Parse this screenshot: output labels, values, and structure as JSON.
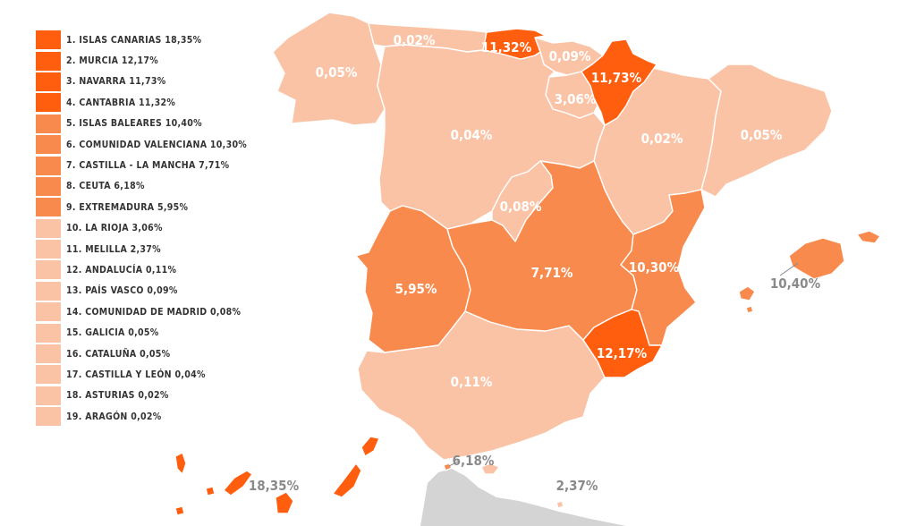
{
  "colors": {
    "tier1": "#ff5e0e",
    "tier2": "#f98a4d",
    "tier3": "#fbc3a6",
    "label_light": "#ffffff",
    "label_dark": "#8a8a8a",
    "foreign_land": "#d4d4d4"
  },
  "legend": [
    {
      "label": "1. ISLAS CANARIAS 18,35%",
      "tier": "tier1"
    },
    {
      "label": "2. MURCIA 12,17%",
      "tier": "tier1"
    },
    {
      "label": "3. NAVARRA 11,73%",
      "tier": "tier1"
    },
    {
      "label": "4. CANTABRIA 11,32%",
      "tier": "tier1"
    },
    {
      "label": "5. ISLAS BALEARES 10,40%",
      "tier": "tier2"
    },
    {
      "label": "6. COMUNIDAD VALENCIANA 10,30%",
      "tier": "tier2"
    },
    {
      "label": "7. CASTILLA - LA MANCHA 7,71%",
      "tier": "tier2"
    },
    {
      "label": "8. CEUTA 6,18%",
      "tier": "tier2"
    },
    {
      "label": "9. EXTREMADURA 5,95%",
      "tier": "tier2"
    },
    {
      "label": "10. LA RIOJA 3,06%",
      "tier": "tier3"
    },
    {
      "label": "11. MELILLA 2,37%",
      "tier": "tier3"
    },
    {
      "label": "12. ANDALUCÍA 0,11%",
      "tier": "tier3"
    },
    {
      "label": "13. PAÍS VASCO 0,09%",
      "tier": "tier3"
    },
    {
      "label": "14. COMUNIDAD DE MADRID 0,08%",
      "tier": "tier3"
    },
    {
      "label": "15. GALICIA 0,05%",
      "tier": "tier3"
    },
    {
      "label": "16. CATALUÑA 0,05%",
      "tier": "tier3"
    },
    {
      "label": "17. CASTILLA Y LEÓN 0,04%",
      "tier": "tier3"
    },
    {
      "label": "18. ASTURIAS 0,02%",
      "tier": "tier3"
    },
    {
      "label": "19. ARAGÓN 0,02%",
      "tier": "tier3"
    }
  ],
  "regions": {
    "galicia": {
      "value": "0,05%",
      "tier": "tier3"
    },
    "asturias": {
      "value": "0,02%",
      "tier": "tier3"
    },
    "cantabria": {
      "value": "11,32%",
      "tier": "tier1"
    },
    "pais_vasco": {
      "value": "0,09%",
      "tier": "tier3"
    },
    "navarra": {
      "value": "11,73%",
      "tier": "tier1"
    },
    "la_rioja": {
      "value": "3,06%",
      "tier": "tier3"
    },
    "castilla_leon": {
      "value": "0,04%",
      "tier": "tier3"
    },
    "aragon": {
      "value": "0,02%",
      "tier": "tier3"
    },
    "cataluna": {
      "value": "0,05%",
      "tier": "tier3"
    },
    "madrid": {
      "value": "0,08%",
      "tier": "tier3"
    },
    "castilla_la_mancha": {
      "value": "7,71%",
      "tier": "tier2"
    },
    "extremadura": {
      "value": "5,95%",
      "tier": "tier2"
    },
    "valencia": {
      "value": "10,30%",
      "tier": "tier2"
    },
    "murcia": {
      "value": "12,17%",
      "tier": "tier1"
    },
    "andalucia": {
      "value": "0,11%",
      "tier": "tier3"
    },
    "baleares": {
      "value": "10,40%",
      "tier": "tier2"
    },
    "canarias": {
      "value": "18,35%",
      "tier": "tier1"
    },
    "ceuta": {
      "value": "6,18%",
      "tier": "tier2"
    },
    "melilla": {
      "value": "2,37%",
      "tier": "tier3"
    }
  }
}
